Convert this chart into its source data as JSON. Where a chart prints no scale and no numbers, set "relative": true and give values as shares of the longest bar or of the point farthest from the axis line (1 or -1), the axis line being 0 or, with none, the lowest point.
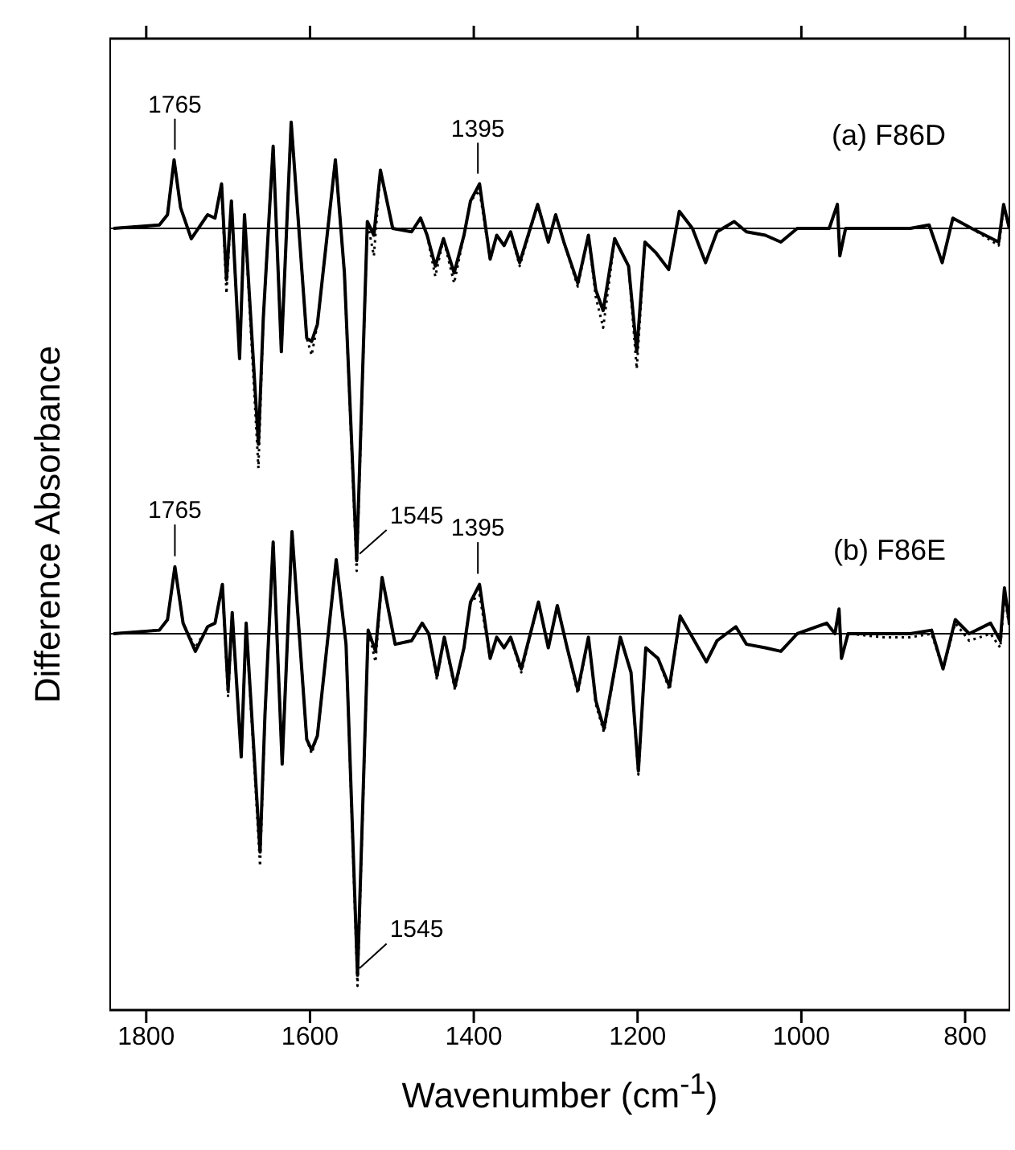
{
  "chart_data": [
    {
      "type": "line",
      "title": "(a) F86D",
      "ylabel": "Difference Absorbance",
      "relative": true,
      "xlim": [
        1845,
        745
      ],
      "xticks": [
        1800,
        1600,
        1400,
        1200,
        1000,
        800
      ],
      "tick_labels": false,
      "marker": "none",
      "legend": false,
      "grid": false,
      "ref_lines": [
        {
          "axis": "y",
          "value": 0,
          "color": "#000000"
        }
      ],
      "annotations": [
        {
          "text": "1765",
          "x": 1765,
          "y": 0.2
        },
        {
          "text": "1395",
          "x": 1395,
          "y": 0.13
        },
        {
          "text": "1545",
          "x": 1545,
          "y": -1
        }
      ],
      "x": [
        1840,
        1784,
        1774,
        1766,
        1758,
        1745,
        1725,
        1716,
        1708,
        1702,
        1696,
        1686,
        1680,
        1663,
        1657,
        1645,
        1635,
        1623,
        1604,
        1598,
        1591,
        1569,
        1558,
        1543,
        1530,
        1522,
        1514,
        1499,
        1476,
        1465,
        1457,
        1447,
        1437,
        1424,
        1412,
        1404,
        1393,
        1380,
        1372,
        1363,
        1355,
        1344,
        1322,
        1309,
        1300,
        1290,
        1273,
        1260,
        1251,
        1242,
        1228,
        1211,
        1201,
        1191,
        1178,
        1162,
        1149,
        1133,
        1117,
        1103,
        1082,
        1067,
        1044,
        1025,
        1005,
        966,
        956,
        953,
        946,
        900,
        867,
        844,
        828,
        815,
        792,
        759,
        753,
        746
      ],
      "series": [
        {
          "color": "#000000",
          "line_style": "solid",
          "values": [
            0,
            0.01,
            0.04,
            0.2,
            0.06,
            -0.03,
            0.04,
            0.03,
            0.13,
            -0.15,
            0.08,
            -0.38,
            0.04,
            -0.63,
            -0.26,
            0.24,
            -0.36,
            0.31,
            -0.32,
            -0.33,
            -0.28,
            0.2,
            -0.13,
            -0.97,
            0.02,
            -0.02,
            0.17,
            0,
            -0.01,
            0.03,
            -0.02,
            -0.11,
            -0.03,
            -0.13,
            -0.02,
            0.08,
            0.13,
            -0.09,
            -0.02,
            -0.05,
            -0.01,
            -0.1,
            0.07,
            -0.04,
            0.04,
            -0.04,
            -0.16,
            -0.02,
            -0.18,
            -0.24,
            -0.03,
            -0.11,
            -0.36,
            -0.04,
            -0.07,
            -0.12,
            0.05,
            0,
            -0.1,
            -0.01,
            0.02,
            -0.01,
            -0.02,
            -0.04,
            0,
            0,
            0.07,
            -0.08,
            0,
            0,
            0,
            0.01,
            -0.1,
            0.03,
            0,
            -0.04,
            0.07,
            0
          ]
        },
        {
          "color": "#000000",
          "line_style": "dotted",
          "values": [
            0,
            0.01,
            0.04,
            0.2,
            0.06,
            -0.03,
            0.04,
            0.03,
            0.13,
            -0.19,
            0.08,
            -0.38,
            0.04,
            -0.7,
            -0.26,
            0.24,
            -0.36,
            0.31,
            -0.32,
            -0.37,
            -0.28,
            0.2,
            -0.13,
            -1,
            0.02,
            -0.08,
            0.17,
            0,
            -0.01,
            0.03,
            -0.02,
            -0.14,
            -0.03,
            -0.16,
            -0.02,
            0.08,
            0.11,
            -0.09,
            -0.02,
            -0.05,
            -0.01,
            -0.11,
            0.07,
            -0.04,
            0.04,
            -0.04,
            -0.17,
            -0.02,
            -0.2,
            -0.29,
            -0.03,
            -0.11,
            -0.41,
            -0.04,
            -0.07,
            -0.12,
            0.05,
            0,
            -0.1,
            -0.01,
            0.02,
            -0.01,
            -0.02,
            -0.04,
            0,
            0,
            0.07,
            -0.08,
            0,
            0,
            0,
            0.01,
            -0.1,
            0.03,
            0,
            -0.05,
            0.06,
            0
          ]
        }
      ]
    },
    {
      "type": "line",
      "title": "(b) F86E",
      "xlabel": "Wavenumber (cm$^{-1}$)",
      "relative": true,
      "xlim": [
        1845,
        745
      ],
      "xticks": [
        1800,
        1600,
        1400,
        1200,
        1000,
        800
      ],
      "tick_labels": "x",
      "marker": "none",
      "legend": false,
      "grid": false,
      "ref_lines": [
        {
          "axis": "y",
          "value": 0,
          "color": "#000000"
        }
      ],
      "annotations": [
        {
          "text": "1765",
          "x": 1765,
          "y": 0.19
        },
        {
          "text": "1395",
          "x": 1395,
          "y": 0.14
        },
        {
          "text": "1545",
          "x": 1545,
          "y": -1
        }
      ],
      "x": [
        1840,
        1784,
        1774,
        1765,
        1755,
        1740,
        1725,
        1716,
        1707,
        1700,
        1695,
        1684,
        1678,
        1661,
        1655,
        1645,
        1634,
        1622,
        1604,
        1598,
        1591,
        1568,
        1556,
        1542,
        1529,
        1520,
        1512,
        1496,
        1476,
        1463,
        1455,
        1445,
        1436,
        1423,
        1412,
        1404,
        1393,
        1380,
        1372,
        1363,
        1355,
        1342,
        1321,
        1309,
        1298,
        1286,
        1273,
        1260,
        1251,
        1241,
        1221,
        1208,
        1199,
        1190,
        1175,
        1161,
        1148,
        1133,
        1116,
        1103,
        1080,
        1067,
        1044,
        1025,
        1005,
        969,
        959,
        954,
        951,
        943,
        900,
        867,
        841,
        827,
        812,
        795,
        769,
        757,
        752,
        746
      ],
      "series": [
        {
          "color": "#000000",
          "line_style": "solid",
          "values": [
            0,
            0.01,
            0.04,
            0.19,
            0.03,
            -0.05,
            0.02,
            0.03,
            0.14,
            -0.16,
            0.06,
            -0.35,
            0.03,
            -0.62,
            -0.23,
            0.26,
            -0.37,
            0.29,
            -0.3,
            -0.33,
            -0.29,
            0.21,
            -0.03,
            -0.97,
            0.01,
            -0.05,
            0.16,
            -0.03,
            -0.02,
            0.03,
            0,
            -0.12,
            -0.01,
            -0.15,
            -0.04,
            0.09,
            0.14,
            -0.07,
            -0.01,
            -0.04,
            -0.01,
            -0.1,
            0.09,
            -0.04,
            0.08,
            -0.04,
            -0.16,
            -0.01,
            -0.19,
            -0.27,
            -0.01,
            -0.11,
            -0.39,
            -0.04,
            -0.07,
            -0.15,
            0.05,
            -0.01,
            -0.08,
            -0.02,
            0.02,
            -0.03,
            -0.04,
            -0.05,
            0,
            0.03,
            0,
            0.07,
            -0.07,
            0,
            0,
            0,
            0.01,
            -0.1,
            0.04,
            0,
            0.03,
            -0.02,
            0.13,
            0.03
          ]
        },
        {
          "color": "#000000",
          "line_style": "dotted",
          "values": [
            0,
            0.01,
            0.04,
            0.19,
            0.03,
            -0.04,
            0.02,
            0.03,
            0.14,
            -0.18,
            0.06,
            -0.35,
            0.03,
            -0.66,
            -0.23,
            0.26,
            -0.37,
            0.29,
            -0.3,
            -0.34,
            -0.29,
            0.21,
            -0.03,
            -1,
            0.01,
            -0.08,
            0.16,
            -0.03,
            -0.02,
            0.03,
            0,
            -0.13,
            -0.01,
            -0.16,
            -0.04,
            0.09,
            0.11,
            -0.07,
            -0.01,
            -0.04,
            -0.01,
            -0.11,
            0.09,
            -0.04,
            0.08,
            -0.04,
            -0.17,
            -0.01,
            -0.2,
            -0.28,
            -0.01,
            -0.11,
            -0.4,
            -0.04,
            -0.07,
            -0.16,
            0.05,
            -0.01,
            -0.08,
            -0.02,
            0.02,
            -0.03,
            -0.04,
            -0.05,
            0,
            0.03,
            0,
            0.07,
            -0.07,
            0,
            -0.01,
            -0.01,
            0,
            -0.1,
            0.03,
            -0.02,
            0,
            -0.04,
            0.11,
            0.02
          ]
        }
      ]
    }
  ]
}
